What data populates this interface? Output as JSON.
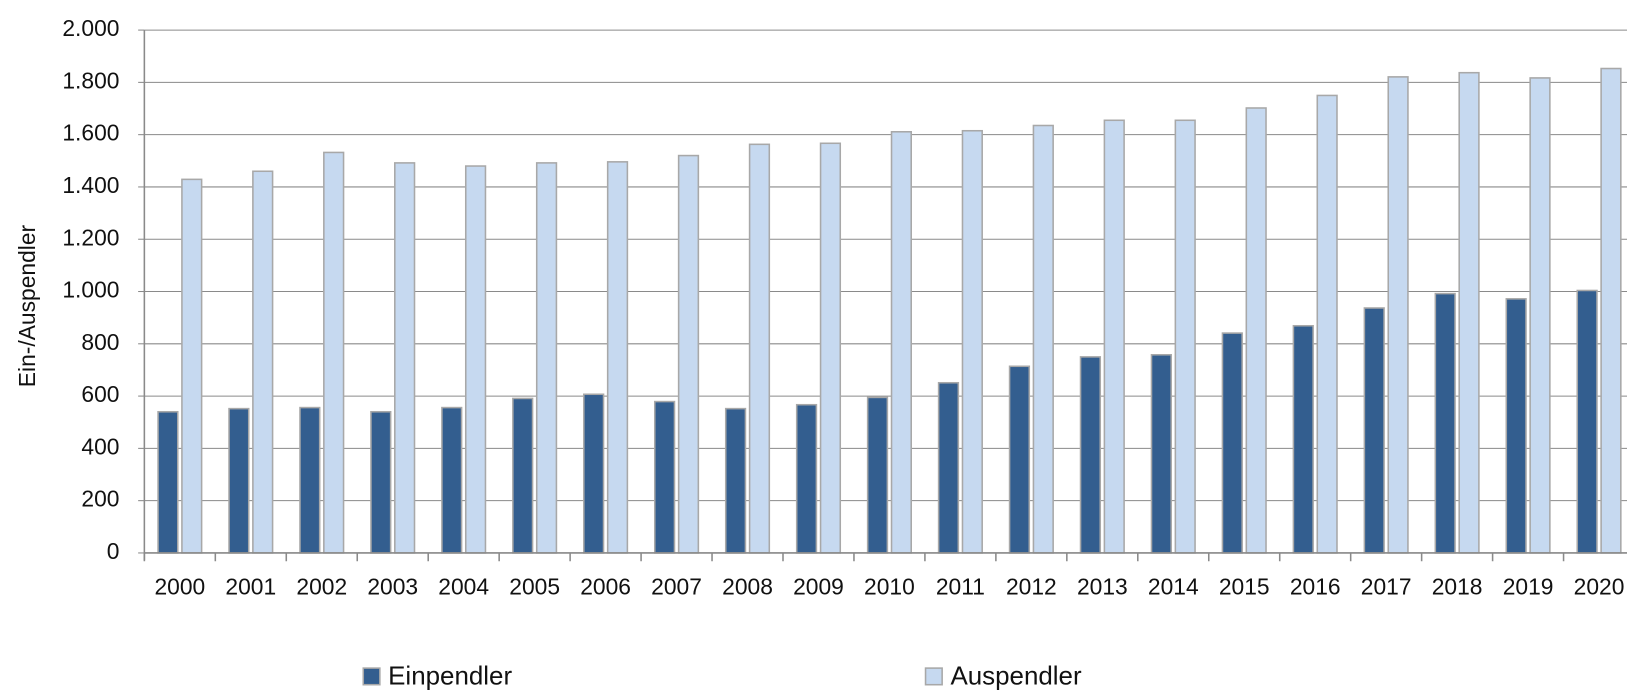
{
  "chart_data": {
    "type": "bar",
    "y_label": "Ein-/Auspendler",
    "categories": [
      "2000",
      "2001",
      "2002",
      "2003",
      "2004",
      "2005",
      "2006",
      "2007",
      "2008",
      "2009",
      "2010",
      "2011",
      "2012",
      "2013",
      "2014",
      "2015",
      "2016",
      "2017",
      "2018",
      "2019",
      "2020"
    ],
    "series": [
      {
        "name": "Einpendler",
        "color": "#335e8f",
        "values": [
          540,
          552,
          556,
          540,
          556,
          591,
          607,
          579,
          552,
          567,
          595,
          651,
          714,
          750,
          758,
          841,
          869,
          937,
          992,
          972,
          1004
        ]
      },
      {
        "name": "Auspendler",
        "color": "#c6d9f0",
        "values": [
          1429,
          1460,
          1532,
          1492,
          1480,
          1492,
          1496,
          1520,
          1563,
          1567,
          1611,
          1615,
          1635,
          1655,
          1655,
          1702,
          1750,
          1821,
          1837,
          1817,
          1853
        ]
      }
    ],
    "ylim": [
      0,
      2000
    ],
    "yticks": [
      0,
      200,
      400,
      600,
      800,
      {
        "value": 1000,
        "label": "1.000"
      },
      {
        "value": 1200,
        "label": "1.200"
      },
      {
        "value": 1400,
        "label": "1.400"
      },
      {
        "value": 1600,
        "label": "1.600"
      },
      {
        "value": 1800,
        "label": "1.800"
      },
      {
        "value": 2000,
        "label": "2.000"
      }
    ],
    "grid": true,
    "legend": "bottom"
  }
}
